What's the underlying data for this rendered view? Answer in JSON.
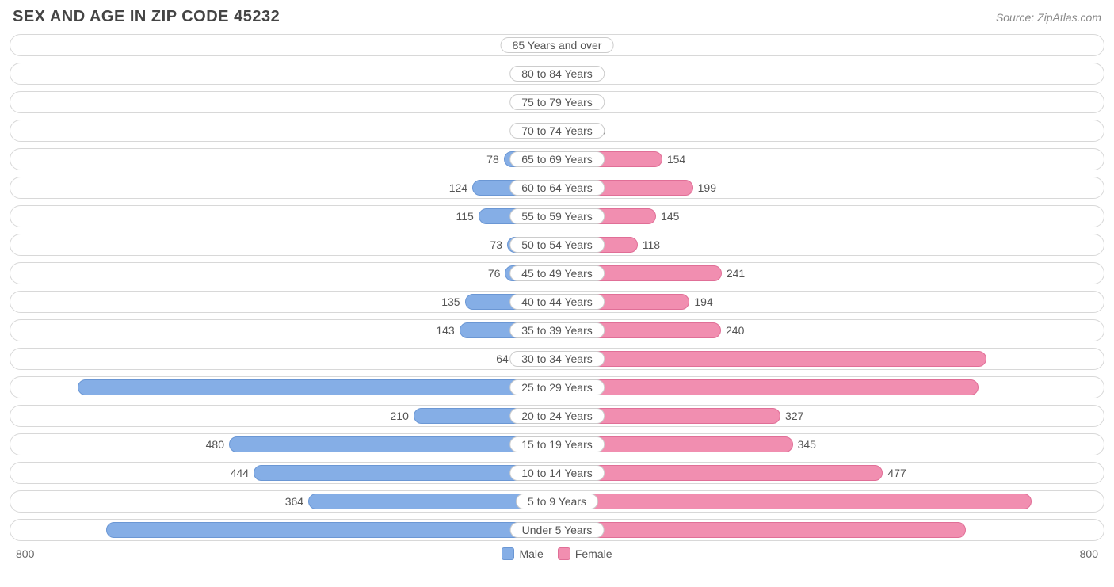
{
  "title": "SEX AND AGE IN ZIP CODE 45232",
  "source": "Source: ZipAtlas.com",
  "chart": {
    "type": "population-pyramid",
    "axis_max": 800,
    "axis_label_left": "800",
    "axis_label_right": "800",
    "colors": {
      "male_fill": "#85aee6",
      "male_border": "#6b97d4",
      "female_fill": "#f18eb0",
      "female_border": "#e06f97",
      "track_border": "#d8d8d8",
      "background": "#ffffff",
      "text": "#555555",
      "title_text": "#444444",
      "source_text": "#888888"
    },
    "legend": {
      "male": "Male",
      "female": "Female"
    },
    "font": {
      "title_size_pt": 15,
      "label_size_pt": 10,
      "family": "Arial"
    },
    "label_inside_threshold": 500,
    "rows": [
      {
        "label": "85 Years and over",
        "male": 0,
        "female": 2
      },
      {
        "label": "80 to 84 Years",
        "male": 5,
        "female": 23
      },
      {
        "label": "75 to 79 Years",
        "male": 29,
        "female": 22
      },
      {
        "label": "70 to 74 Years",
        "male": 34,
        "female": 46
      },
      {
        "label": "65 to 69 Years",
        "male": 78,
        "female": 154
      },
      {
        "label": "60 to 64 Years",
        "male": 124,
        "female": 199
      },
      {
        "label": "55 to 59 Years",
        "male": 115,
        "female": 145
      },
      {
        "label": "50 to 54 Years",
        "male": 73,
        "female": 118
      },
      {
        "label": "45 to 49 Years",
        "male": 76,
        "female": 241
      },
      {
        "label": "40 to 44 Years",
        "male": 135,
        "female": 194
      },
      {
        "label": "35 to 39 Years",
        "male": 143,
        "female": 240
      },
      {
        "label": "30 to 34 Years",
        "male": 64,
        "female": 628
      },
      {
        "label": "25 to 29 Years",
        "male": 701,
        "female": 617
      },
      {
        "label": "20 to 24 Years",
        "male": 210,
        "female": 327
      },
      {
        "label": "15 to 19 Years",
        "male": 480,
        "female": 345
      },
      {
        "label": "10 to 14 Years",
        "male": 444,
        "female": 477
      },
      {
        "label": "5 to 9 Years",
        "male": 364,
        "female": 694
      },
      {
        "label": "Under 5 Years",
        "male": 660,
        "female": 598
      }
    ]
  }
}
